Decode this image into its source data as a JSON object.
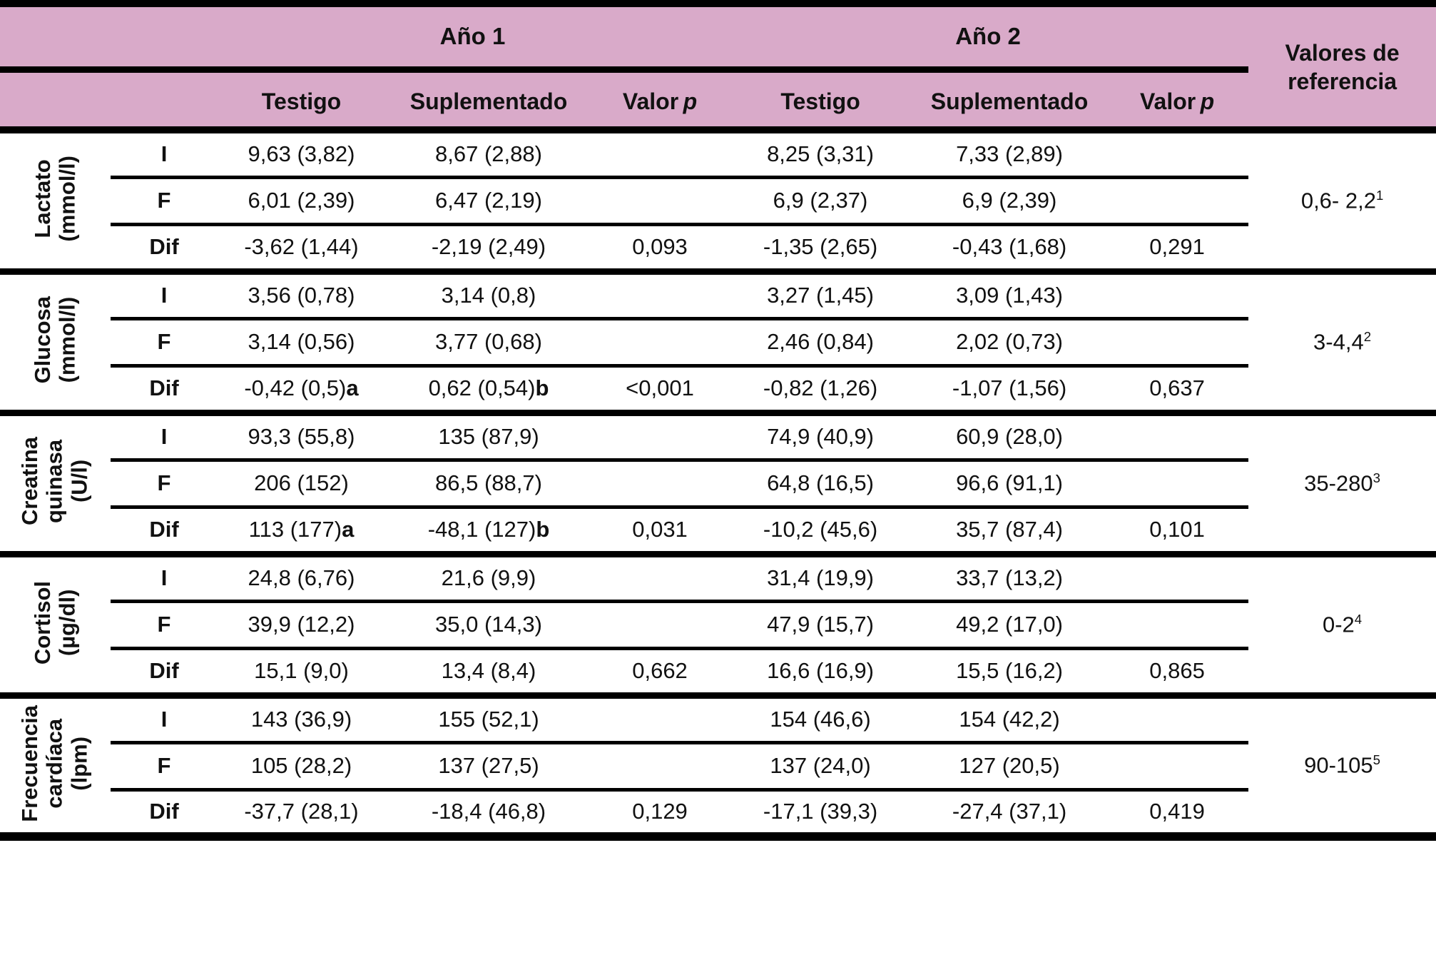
{
  "colors": {
    "header_pink": "#d9aac9",
    "line_black": "#000000"
  },
  "table": {
    "header": {
      "year1": "Año 1",
      "year2": "Año 2",
      "testigo": "Testigo",
      "suplementado": "Suplementado",
      "valor": "Valor",
      "valor_p": "p",
      "reference": "Valores de\nreferencia"
    },
    "groups": [
      {
        "label": "Lactato\n(mmol/l)",
        "reference_value": "0,6- 2,2",
        "reference_sup": "1",
        "rows": [
          {
            "label": "I",
            "y1t": "9,63 (3,82)",
            "y1t_sfx": "",
            "y1s": "8,67 (2,88)",
            "y1s_sfx": "",
            "y1p": "",
            "y2t": "8,25 (3,31)",
            "y2s": "7,33 (2,89)",
            "y2p": ""
          },
          {
            "label": "F",
            "y1t": "6,01 (2,39)",
            "y1t_sfx": "",
            "y1s": "6,47 (2,19)",
            "y1s_sfx": "",
            "y1p": "",
            "y2t": "6,9 (2,37)",
            "y2s": "6,9 (2,39)",
            "y2p": ""
          },
          {
            "label": "Dif",
            "y1t": "-3,62 (1,44)",
            "y1t_sfx": "",
            "y1s": "-2,19 (2,49)",
            "y1s_sfx": "",
            "y1p": "0,093",
            "y2t": "-1,35 (2,65)",
            "y2s": "-0,43 (1,68)",
            "y2p": "0,291"
          }
        ]
      },
      {
        "label": "Glucosa\n(mmol/l)",
        "reference_value": "3-4,4",
        "reference_sup": "2",
        "rows": [
          {
            "label": "I",
            "y1t": "3,56 (0,78)",
            "y1t_sfx": "",
            "y1s": "3,14 (0,8)",
            "y1s_sfx": "",
            "y1p": "",
            "y2t": "3,27 (1,45)",
            "y2s": "3,09 (1,43)",
            "y2p": ""
          },
          {
            "label": "F",
            "y1t": "3,14 (0,56)",
            "y1t_sfx": "",
            "y1s": "3,77 (0,68)",
            "y1s_sfx": "",
            "y1p": "",
            "y2t": "2,46 (0,84)",
            "y2s": "2,02 (0,73)",
            "y2p": ""
          },
          {
            "label": "Dif",
            "y1t": "-0,42 (0,5)",
            "y1t_sfx": "a",
            "y1s": "0,62 (0,54)",
            "y1s_sfx": "b",
            "y1p": "<0,001",
            "y2t": "-0,82 (1,26)",
            "y2s": "-1,07 (1,56)",
            "y2p": "0,637"
          }
        ]
      },
      {
        "label": "Creatina\nquinasa\n(U/l)",
        "reference_value": "35-280",
        "reference_sup": "3",
        "rows": [
          {
            "label": "I",
            "y1t": "93,3 (55,8)",
            "y1t_sfx": "",
            "y1s": "135 (87,9)",
            "y1s_sfx": "",
            "y1p": "",
            "y2t": "74,9 (40,9)",
            "y2s": "60,9 (28,0)",
            "y2p": ""
          },
          {
            "label": "F",
            "y1t": "206 (152)",
            "y1t_sfx": "",
            "y1s": "86,5 (88,7)",
            "y1s_sfx": "",
            "y1p": "",
            "y2t": "64,8 (16,5)",
            "y2s": "96,6 (91,1)",
            "y2p": ""
          },
          {
            "label": "Dif",
            "y1t": "113 (177)",
            "y1t_sfx": "a",
            "y1s": "-48,1 (127)",
            "y1s_sfx": "b",
            "y1p": "0,031",
            "y2t": "-10,2 (45,6)",
            "y2s": "35,7 (87,4)",
            "y2p": "0,101"
          }
        ]
      },
      {
        "label": "Cortisol\n(µg/dl)",
        "reference_value": "0-2",
        "reference_sup": "4",
        "rows": [
          {
            "label": "I",
            "y1t": "24,8 (6,76)",
            "y1t_sfx": "",
            "y1s": "21,6 (9,9)",
            "y1s_sfx": "",
            "y1p": "",
            "y2t": "31,4 (19,9)",
            "y2s": "33,7 (13,2)",
            "y2p": ""
          },
          {
            "label": "F",
            "y1t": "39,9 (12,2)",
            "y1t_sfx": "",
            "y1s": "35,0 (14,3)",
            "y1s_sfx": "",
            "y1p": "",
            "y2t": "47,9 (15,7)",
            "y2s": "49,2 (17,0)",
            "y2p": ""
          },
          {
            "label": "Dif",
            "y1t": "15,1 (9,0)",
            "y1t_sfx": "",
            "y1s": "13,4 (8,4)",
            "y1s_sfx": "",
            "y1p": "0,662",
            "y2t": "16,6 (16,9)",
            "y2s": "15,5 (16,2)",
            "y2p": "0,865"
          }
        ]
      },
      {
        "label": "Frecuencia\ncardíaca\n(lpm)",
        "reference_value": "90-105",
        "reference_sup": "5",
        "rows": [
          {
            "label": "I",
            "y1t": "143 (36,9)",
            "y1t_sfx": "",
            "y1s": "155 (52,1)",
            "y1s_sfx": "",
            "y1p": "",
            "y2t": "154 (46,6)",
            "y2s": "154 (42,2)",
            "y2p": ""
          },
          {
            "label": "F",
            "y1t": "105 (28,2)",
            "y1t_sfx": "",
            "y1s": "137 (27,5)",
            "y1s_sfx": "",
            "y1p": "",
            "y2t": "137 (24,0)",
            "y2s": "127 (20,5)",
            "y2p": ""
          },
          {
            "label": "Dif",
            "y1t": "-37,7 (28,1)",
            "y1t_sfx": "",
            "y1s": "-18,4 (46,8)",
            "y1s_sfx": "",
            "y1p": "0,129",
            "y2t": "-17,1 (39,3)",
            "y2s": "-27,4 (37,1)",
            "y2p": "0,419"
          }
        ]
      }
    ]
  }
}
